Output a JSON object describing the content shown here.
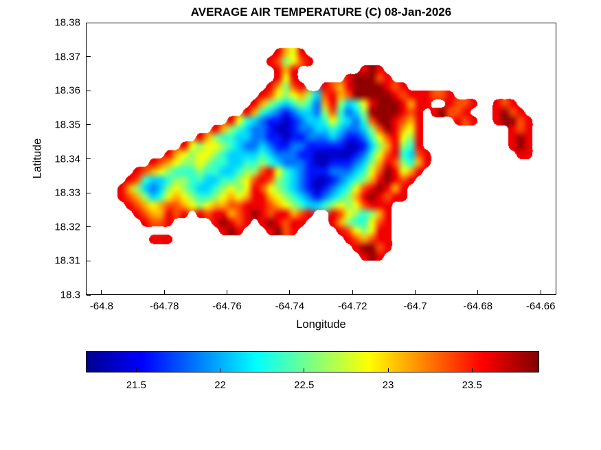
{
  "chart_data": {
    "type": "heatmap",
    "title": "AVERAGE AIR TEMPERATURE (C) 08-Jan-2026",
    "xlabel": "Longitude",
    "ylabel": "Latitude",
    "x_range": [
      -64.805,
      -64.655
    ],
    "y_range": [
      18.3,
      18.38
    ],
    "x_ticks": [
      {
        "value": -64.8,
        "label": "-64.8"
      },
      {
        "value": -64.78,
        "label": "-64.78"
      },
      {
        "value": -64.76,
        "label": "-64.76"
      },
      {
        "value": -64.74,
        "label": "-64.74"
      },
      {
        "value": -64.72,
        "label": "-64.72"
      },
      {
        "value": -64.7,
        "label": "-64.7"
      },
      {
        "value": -64.68,
        "label": "-64.68"
      },
      {
        "value": -64.66,
        "label": "-64.66"
      }
    ],
    "y_ticks": [
      {
        "value": 18.3,
        "label": "18.3"
      },
      {
        "value": 18.31,
        "label": "18.31"
      },
      {
        "value": 18.32,
        "label": "18.32"
      },
      {
        "value": 18.33,
        "label": "18.33"
      },
      {
        "value": 18.34,
        "label": "18.34"
      },
      {
        "value": 18.35,
        "label": "18.35"
      },
      {
        "value": 18.36,
        "label": "18.36"
      },
      {
        "value": 18.37,
        "label": "18.37"
      },
      {
        "value": 18.38,
        "label": "18.38"
      }
    ],
    "grid": {
      "lon_min": -64.8,
      "lon_max": -64.66,
      "lat_min": 18.305,
      "lat_max": 18.375,
      "cols": 56,
      "rows": 28,
      "levels": {
        "a": 21.35,
        "b": 21.6,
        "c": 21.85,
        "d": 22.1,
        "e": 22.35,
        "f": 22.6,
        "g": 22.85,
        "h": 23.1,
        "i": 23.35,
        "j": 23.6,
        "k": 23.85
      },
      "rows_data": [
        "........................................................",
        "......................jhgj..............................",
        ".....................jifgij.............................",
        "......................jhj........jkj....................",
        "......................jgj......jkkkij...................",
        ".....................jhfij..jihjkkkkjij.................",
        "....................jigfghfdijhikkkkkjijjjiij...........",
        "...................jhfedefechjfdegjkkkjhjj..jiij..jij...",
        "..................jhedcbcddcfiecdfkkkkjij.jkiij...jkij..",
        "................jgedcbbabcddegedceikkjihj....jij..jkkij.",
        "..............jhfedccbaabccddedccdfikjhgj...........jij.",
        "............jhfeeddccbbabbcccdcbbcegijgfj...........jkj.",
        "..........jgfggfedccdcbbccbbbbbaabdfhjfej...........jkj.",
        "........jhgfggfeddddedcccbbaaaaabcegijedij...........jj.",
        "......jihgffgfeeddeefedcccbaabbbcdfhjifehj..............",
        "....jihgfeeefeeddeffijgedcbbbcccdegikjghj...............",
        "...jieddeffeeddeefgijifedcbaabcdefhjkjij................",
        "..jhfdcdfgfeddefgfgjigfedcbabcdegijkjhj.................",
        "..jihfdeghgfeefghghjjhgfedcbcdefhjkjijj.................",
        "...jihghiihgfghhiijjjihgfeddefgfgijjj...................",
        "....jihhjij.jijjhijkjijjhij..jigfefhj...................",
        ".....jiij.....jkjij.jkjijj...jhfeegij...................",
        "...............jkj...jkij.....jigfgjj...................",
        "......jjj......................jihijj...................",
        "................................jkkij...................",
        ".................................jkj....................",
        "........................................................",
        "........................................................"
      ]
    },
    "colorbar": {
      "cmin": 21.2,
      "cmax": 23.9,
      "ticks": [
        21.5,
        22,
        22.5,
        23,
        23.5
      ],
      "tick_labels": [
        "21.5",
        "22",
        "22.5",
        "23",
        "23.5"
      ],
      "jet_stops": [
        [
          "0",
          "#00008F"
        ],
        [
          "0.125",
          "#0000FF"
        ],
        [
          "0.375",
          "#00FFFF"
        ],
        [
          "0.625",
          "#FFFF00"
        ],
        [
          "0.875",
          "#FF0000"
        ],
        [
          "1",
          "#800000"
        ]
      ]
    }
  }
}
